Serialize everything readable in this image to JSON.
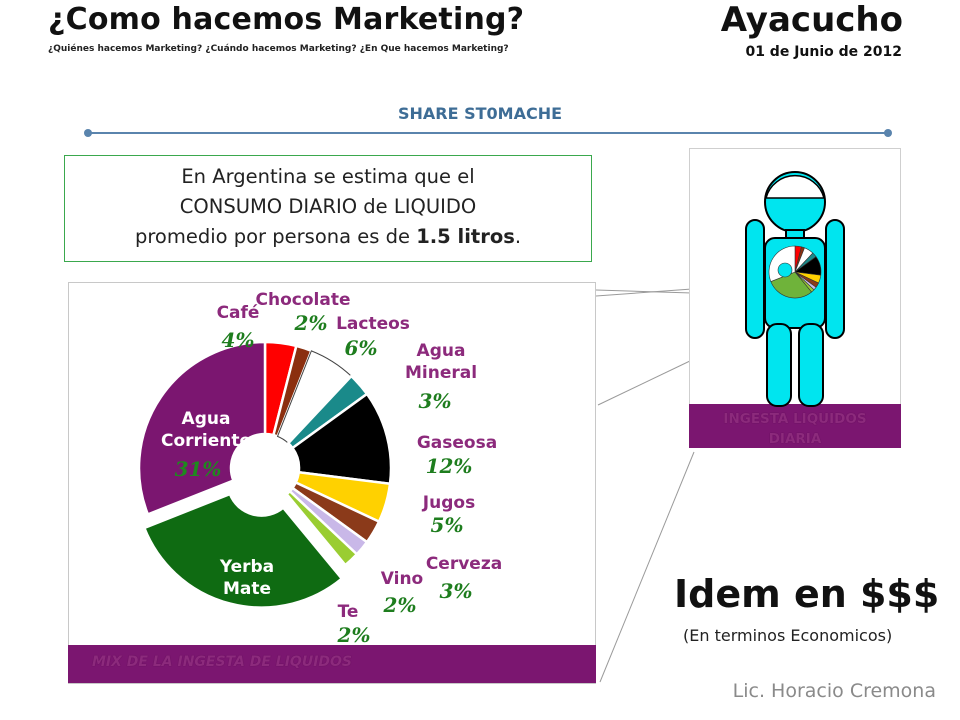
{
  "header": {
    "title": "¿Como hacemos Marketing?",
    "subtitle": "¿Quiénes hacemos Marketing? ¿Cuándo hacemos Marketing? ¿En Que hacemos Marketing?",
    "city": "Ayacucho",
    "date": "01 de Junio de 2012"
  },
  "section_title": "SHARE ST0MACHE",
  "intro": {
    "line1": "En Argentina se estima que el",
    "line2": "CONSUMO DIARIO de LIQUIDO",
    "line3_pre": "promedio por persona es de ",
    "line3_bold": "1.5 litros",
    "line3_post": "."
  },
  "chart_data": {
    "type": "pie",
    "title": "",
    "slices": [
      {
        "label": "Café",
        "value": 4,
        "value_label": "4%",
        "color": "#ff0000"
      },
      {
        "label": "Chocolate",
        "value": 2,
        "value_label": "2%",
        "color": "#8b2f0f"
      },
      {
        "label": "Lacteos",
        "value": 6,
        "value_label": "6%",
        "color": "#ffffff"
      },
      {
        "label": "Agua Mineral",
        "value": 3,
        "value_label": "3%",
        "color": "#1a8a8a"
      },
      {
        "label": "Gaseosa",
        "value": 12,
        "value_label": "12%",
        "color": "#000000"
      },
      {
        "label": "Jugos",
        "value": 5,
        "value_label": "5%",
        "color": "#ffd100"
      },
      {
        "label": "Cerveza",
        "value": 3,
        "value_label": "3%",
        "color": "#8b3a1a"
      },
      {
        "label": "Vino",
        "value": 2,
        "value_label": "2%",
        "color": "#c9b8e8"
      },
      {
        "label": "Te",
        "value": 2,
        "value_label": "2%",
        "color": "#9acd32"
      },
      {
        "label": "Yerba Mate",
        "value": 30,
        "value_label": "30%",
        "color": "#0f6b12"
      },
      {
        "label": "Agua Corriente",
        "value": 31,
        "value_label": "31%",
        "color": "#7b1670"
      }
    ],
    "legend": "none",
    "exploded": "Yerba Mate"
  },
  "chart_banner": "MIX DE LA INGESTA DE LIQUIDOS",
  "figure_banner_line1": "INGESTA LIQUIDOS",
  "figure_banner_line2": "DIARIA",
  "idem": {
    "title": "Idem en $$$",
    "subtitle": "(En terminos Economicos)"
  },
  "author": "Lic. Horacio Cremona",
  "colors": {
    "accent_blue": "#3e6d96",
    "purple": "#7b1670",
    "label_purple": "#8c2a7c",
    "pct_green": "#1e7d1e",
    "cyan": "#00e5ef"
  }
}
